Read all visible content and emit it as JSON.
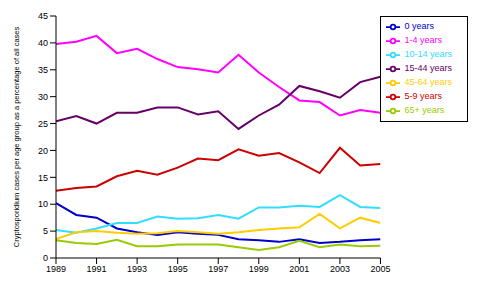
{
  "chart_data": {
    "type": "line",
    "y_label": "Cryptosporidium cases per age group as a percentage of all cases",
    "x": [
      1989,
      1990,
      1991,
      1992,
      1993,
      1994,
      1995,
      1996,
      1997,
      1998,
      1999,
      2000,
      2001,
      2002,
      2003,
      2004,
      2005
    ],
    "xlim": [
      1989,
      2005
    ],
    "xticks": [
      1989,
      1991,
      1993,
      1995,
      1997,
      1999,
      2001,
      2003,
      2005
    ],
    "ylim": [
      0,
      45
    ],
    "yticks": [
      0,
      5,
      10,
      15,
      20,
      25,
      30,
      35,
      40,
      45
    ],
    "grid": false,
    "legend": "right",
    "series": [
      {
        "name": "0 years",
        "color": "#0000cc",
        "values": [
          10.2,
          8,
          7.5,
          5.5,
          4.8,
          4.3,
          4.8,
          4.5,
          4.3,
          3.5,
          3.3,
          3,
          3.5,
          2.8,
          3,
          3.3,
          3.5
        ]
      },
      {
        "name": "1-4 years",
        "color": "#ff00ff",
        "values": [
          39.8,
          40.2,
          41.3,
          38.1,
          38.9,
          37,
          35.5,
          35.1,
          34.5,
          37.8,
          34.5,
          31.8,
          29.3,
          29,
          26.5,
          27.5,
          27
        ]
      },
      {
        "name": "5-9 years",
        "color": "#cc0000",
        "values": [
          12.5,
          13,
          13.3,
          15.2,
          16.2,
          15.5,
          16.8,
          18.5,
          18.2,
          20.2,
          19,
          19.5,
          17.8,
          15.8,
          20.5,
          17.2,
          17.5
        ]
      },
      {
        "name": "10-14 years",
        "color": "#33ddff",
        "values": [
          5.2,
          4.7,
          5.5,
          6.5,
          6.5,
          7.7,
          7.3,
          7.4,
          8,
          7.3,
          9.4,
          9.4,
          9.7,
          9.5,
          11.7,
          9.5,
          9.3
        ]
      },
      {
        "name": "15-44 years",
        "color": "#660066",
        "values": [
          25.4,
          26.4,
          25,
          27,
          27,
          28,
          28,
          26.7,
          27.3,
          24,
          26.5,
          28.5,
          32,
          31,
          29.8,
          32.7,
          33.7
        ]
      },
      {
        "name": "45-64 years",
        "color": "#ffcc00",
        "values": [
          3.5,
          4.8,
          5,
          4.7,
          4.5,
          4.6,
          5,
          4.8,
          4.5,
          4.8,
          5.2,
          5.5,
          5.7,
          8.2,
          5.5,
          7.5,
          6.5
        ]
      },
      {
        "name": "65+ years",
        "color": "#99cc00",
        "values": [
          3.3,
          2.8,
          2.6,
          3.4,
          2.2,
          2.2,
          2.5,
          2.5,
          2.5,
          2.0,
          1.5,
          2.0,
          3.2,
          2.0,
          2.5,
          2.2,
          2.3
        ]
      }
    ]
  }
}
